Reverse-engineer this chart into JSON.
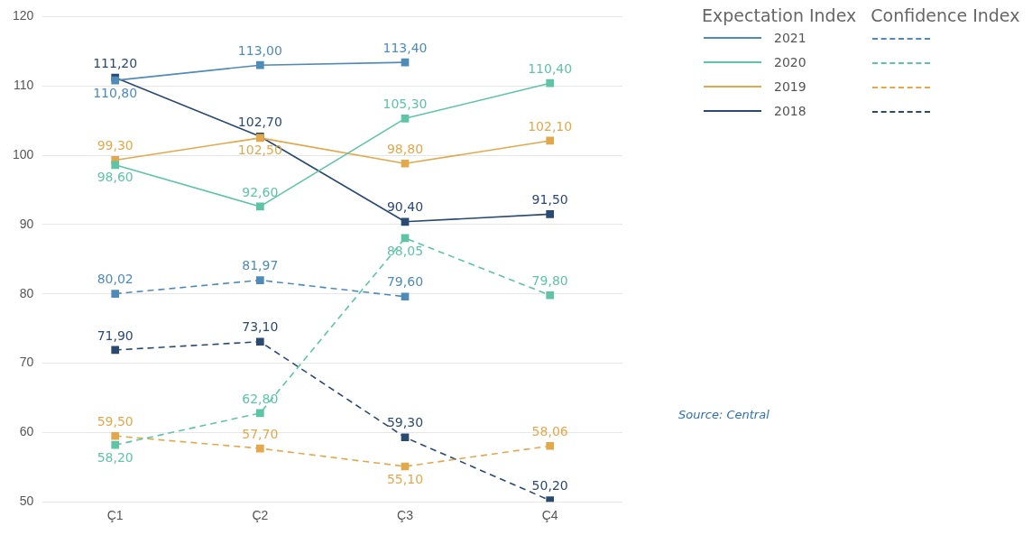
{
  "chart_data": {
    "type": "line",
    "categories": [
      "Ç1",
      "Ç2",
      "Ç3",
      "Ç4"
    ],
    "ylim": [
      50,
      120
    ],
    "yticks": [
      50,
      60,
      70,
      80,
      90,
      100,
      110,
      120
    ],
    "grid": "y",
    "marker": "square",
    "legend": "top right",
    "series": [
      {
        "name": "2021",
        "color": "#4f8bb9",
        "line_style": "solid",
        "values": [
          110.8,
          113.0,
          113.4,
          null
        ],
        "value_labels": [
          "110,80",
          "113,00",
          "113,40",
          null
        ]
      },
      {
        "name": "2020",
        "color": "#5ec4a6",
        "line_style": "solid",
        "values": [
          98.6,
          92.6,
          105.3,
          110.4
        ],
        "value_labels": [
          "98,60",
          "92,60",
          "105,30",
          "110,40"
        ]
      },
      {
        "name": "2019",
        "color": "#e3a84c",
        "line_style": "solid",
        "values": [
          99.3,
          102.5,
          98.8,
          102.1
        ],
        "value_labels": [
          "99,30",
          "102,50",
          "98,80",
          "102,10"
        ]
      },
      {
        "name": "2018",
        "color": "#2b4a72",
        "line_style": "solid",
        "values": [
          111.2,
          102.7,
          90.4,
          91.5
        ],
        "value_labels": [
          "111,20",
          "102,70",
          "90,40",
          "91,50"
        ]
      },
      {
        "color": "#4f8bb9",
        "line_style": "dashed",
        "values": [
          80.02,
          81.97,
          79.6,
          null
        ],
        "value_labels": [
          "80,02",
          "81,97",
          "79,60",
          null
        ]
      },
      {
        "color": "#5ec4a6",
        "line_style": "dashed",
        "values": [
          58.2,
          62.8,
          88.05,
          79.8
        ],
        "value_labels": [
          "58,20",
          "62,80",
          "88,05",
          "79,80"
        ]
      },
      {
        "color": "#e3a84c",
        "line_style": "dashed",
        "values": [
          59.5,
          57.7,
          55.1,
          58.06
        ],
        "value_labels": [
          "59,50",
          "57,70",
          "55,10",
          "58,06"
        ]
      },
      {
        "color": "#2b4a72",
        "line_style": "dashed",
        "values": [
          71.9,
          73.1,
          59.3,
          50.2
        ],
        "value_labels": [
          "71,90",
          "73,10",
          "59,30",
          "50,20"
        ]
      }
    ],
    "annotations": [
      "Expectation Index",
      "Confidence Index",
      "Source: Central"
    ]
  }
}
